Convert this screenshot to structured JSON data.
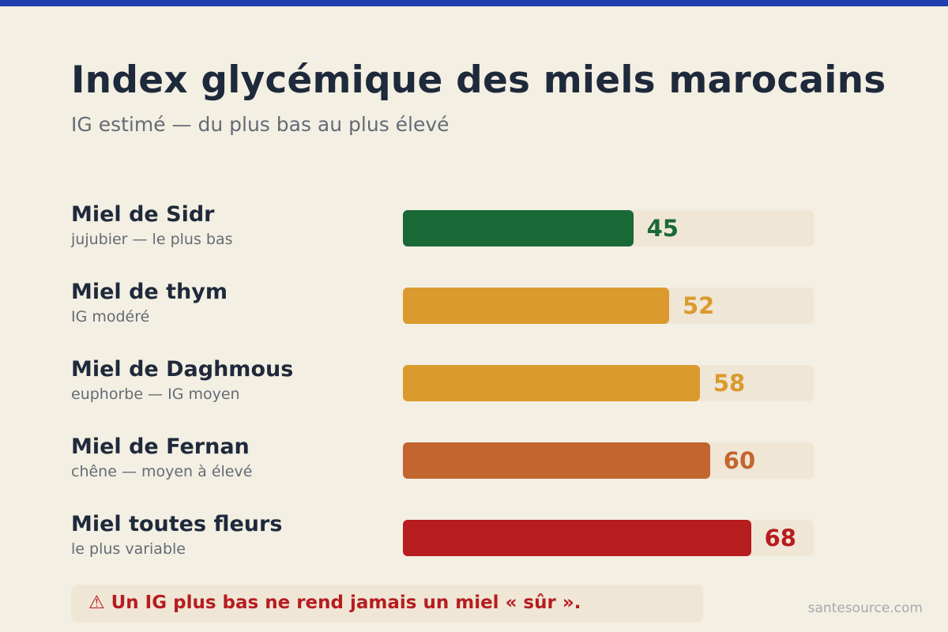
{
  "header": {
    "title": "Index glycémique des miels marocains",
    "subtitle": "IG estimé — du plus bas au plus élevé"
  },
  "chart_data": {
    "type": "bar",
    "orientation": "horizontal",
    "title": "Index glycémique des miels marocains",
    "subtitle": "IG estimé — du plus bas au plus élevé",
    "xlim": [
      0,
      100
    ],
    "grid": false,
    "categories": [
      "Miel de Sidr",
      "Miel de thym",
      "Miel de Daghmous",
      "Miel de Fernan",
      "Miel toutes fleurs"
    ],
    "notes": [
      "jujubier — le plus bas",
      "IG modéré",
      "euphorbe — IG moyen",
      "chêne — moyen à élevé",
      "le plus variable"
    ],
    "values": [
      45,
      52,
      58,
      60,
      68
    ],
    "colors": [
      "#196936",
      "#db9a2e",
      "#db9a2e",
      "#c3652e",
      "#b71c1f"
    ]
  },
  "footer": {
    "warning": "⚠ Un IG plus bas ne rend jamais un miel « sûr ».",
    "source": "santesource.com"
  }
}
